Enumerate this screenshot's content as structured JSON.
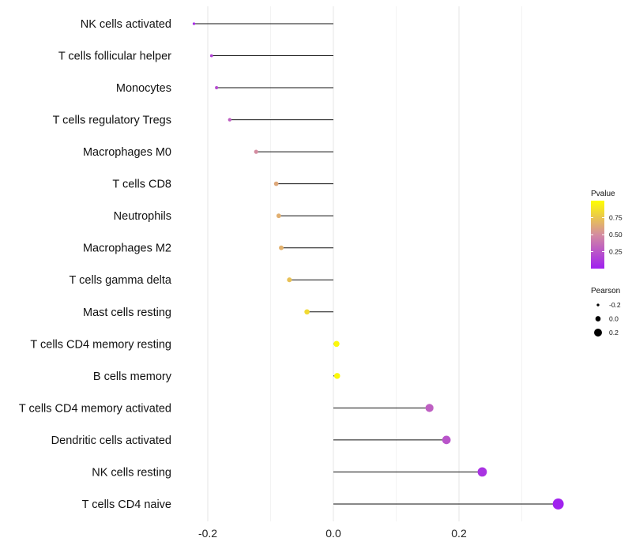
{
  "chart_data": {
    "type": "lollipop",
    "title": "",
    "xlabel": "",
    "ylabel": "",
    "xlim": [
      -0.3,
      0.37
    ],
    "x_ticks": [
      -0.2,
      0.0,
      0.2
    ],
    "x_tick_labels": [
      "-0.2",
      "0.0",
      "0.2"
    ],
    "grid": true,
    "categories": [
      "NK cells activated",
      "T cells follicular helper",
      "Monocytes",
      "T cells regulatory  Tregs ",
      "Macrophages M0",
      "T cells CD8",
      "Neutrophils",
      "Macrophages M2",
      "T cells gamma delta",
      "Mast cells resting",
      "T cells CD4 memory resting",
      "B cells memory",
      "T cells CD4 memory activated",
      "Dendritic cells activated",
      "NK cells resting",
      "T cells CD4 naive"
    ],
    "pearson": [
      -0.222,
      -0.194,
      -0.186,
      -0.165,
      -0.123,
      -0.091,
      -0.087,
      -0.083,
      -0.07,
      -0.042,
      0.005,
      0.006,
      0.153,
      0.18,
      0.237,
      0.358
    ],
    "pvalue": [
      0.07,
      0.17,
      0.2,
      0.29,
      0.5,
      0.62,
      0.65,
      0.66,
      0.73,
      0.84,
      0.97,
      0.97,
      0.29,
      0.24,
      0.09,
      0.01
    ],
    "legend_pvalue": {
      "title": "Pvalue",
      "ticks": [
        0.75,
        0.5,
        0.25
      ],
      "labels": [
        "0.75",
        "0.50",
        "0.25"
      ],
      "range": [
        0.0,
        1.0
      ],
      "color_low": "#a020f0",
      "color_mid": "#d48ca0",
      "color_high": "#ffff00"
    },
    "legend_pearson": {
      "title": "Pearson",
      "values": [
        -0.2,
        0.0,
        0.2
      ],
      "labels": [
        "-0.2",
        "0.0",
        "0.2"
      ]
    },
    "legend_position": "right"
  }
}
